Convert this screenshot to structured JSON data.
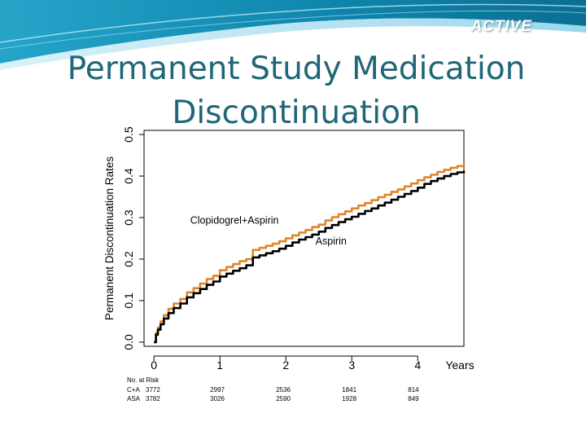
{
  "header": {
    "brand": "ACTIVE"
  },
  "slide": {
    "title_line1": "Permanent Study Medication",
    "title_line2": "Discontinuation"
  },
  "colors": {
    "title": "#1f6677",
    "clopidogrel_line": "#e0852a",
    "aspirin_line": "#000000",
    "banner_dark": "#1d8fb0",
    "banner_light": "#8fd3ea"
  },
  "chart_data": {
    "type": "line",
    "title": "",
    "xlabel": "Years",
    "ylabel": "Permanent Discontinuation Rates",
    "xlim": [
      -0.15,
      4.7
    ],
    "ylim": [
      -0.01,
      0.51
    ],
    "xticks": [
      0,
      1,
      2,
      3,
      4
    ],
    "yticks": [
      0.0,
      0.1,
      0.2,
      0.3,
      0.4,
      0.5
    ],
    "ytick_labels": [
      "0.0",
      "0.1",
      "0.2",
      "0.3",
      "0.4",
      "0.5"
    ],
    "grid": false,
    "series": [
      {
        "name": "Clopidogrel+Aspirin",
        "color": "#e0852a",
        "x": [
          0,
          0.03,
          0.06,
          0.1,
          0.15,
          0.22,
          0.3,
          0.4,
          0.5,
          0.6,
          0.7,
          0.8,
          0.9,
          1.0,
          1.1,
          1.2,
          1.3,
          1.4,
          1.5,
          1.6,
          1.7,
          1.8,
          1.9,
          2.0,
          2.1,
          2.2,
          2.3,
          2.4,
          2.5,
          2.6,
          2.7,
          2.8,
          2.9,
          3.0,
          3.1,
          3.2,
          3.3,
          3.4,
          3.5,
          3.6,
          3.7,
          3.8,
          3.9,
          4.0,
          4.1,
          4.2,
          4.3,
          4.4,
          4.5,
          4.6,
          4.7
        ],
        "y": [
          0.0,
          0.022,
          0.035,
          0.05,
          0.065,
          0.08,
          0.093,
          0.104,
          0.12,
          0.13,
          0.141,
          0.152,
          0.16,
          0.173,
          0.181,
          0.188,
          0.195,
          0.2,
          0.222,
          0.227,
          0.232,
          0.237,
          0.243,
          0.25,
          0.257,
          0.264,
          0.27,
          0.277,
          0.283,
          0.293,
          0.301,
          0.308,
          0.315,
          0.322,
          0.329,
          0.335,
          0.342,
          0.349,
          0.355,
          0.362,
          0.368,
          0.375,
          0.382,
          0.39,
          0.397,
          0.403,
          0.41,
          0.415,
          0.42,
          0.424,
          0.43
        ]
      },
      {
        "name": "Aspirin",
        "color": "#000000",
        "x": [
          0,
          0.03,
          0.06,
          0.1,
          0.15,
          0.22,
          0.3,
          0.4,
          0.5,
          0.6,
          0.7,
          0.8,
          0.9,
          1.0,
          1.1,
          1.2,
          1.3,
          1.4,
          1.5,
          1.6,
          1.7,
          1.8,
          1.9,
          2.0,
          2.1,
          2.2,
          2.3,
          2.4,
          2.5,
          2.6,
          2.7,
          2.8,
          2.9,
          3.0,
          3.1,
          3.2,
          3.3,
          3.4,
          3.5,
          3.6,
          3.7,
          3.8,
          3.9,
          4.0,
          4.1,
          4.2,
          4.3,
          4.4,
          4.5,
          4.6,
          4.7
        ],
        "y": [
          0.0,
          0.018,
          0.03,
          0.043,
          0.057,
          0.07,
          0.082,
          0.093,
          0.108,
          0.118,
          0.128,
          0.138,
          0.146,
          0.158,
          0.165,
          0.172,
          0.178,
          0.185,
          0.204,
          0.209,
          0.214,
          0.219,
          0.225,
          0.232,
          0.24,
          0.247,
          0.253,
          0.259,
          0.266,
          0.275,
          0.282,
          0.289,
          0.296,
          0.302,
          0.309,
          0.316,
          0.322,
          0.329,
          0.336,
          0.343,
          0.35,
          0.357,
          0.364,
          0.372,
          0.381,
          0.388,
          0.394,
          0.4,
          0.405,
          0.409,
          0.413
        ]
      }
    ],
    "annotations": [
      {
        "text": "Clopidogrel+Aspirin",
        "x": 0.55,
        "y": 0.285
      },
      {
        "text": "Aspirin",
        "x": 2.45,
        "y": 0.235
      }
    ],
    "risk_table": {
      "header": "No. at Risk",
      "rows": [
        {
          "label": "C+A",
          "values": [
            "3772",
            "2997",
            "2536",
            "1841",
            "814"
          ]
        },
        {
          "label": "ASA",
          "values": [
            "3782",
            "3026",
            "2590",
            "1928",
            "849"
          ]
        }
      ]
    }
  }
}
